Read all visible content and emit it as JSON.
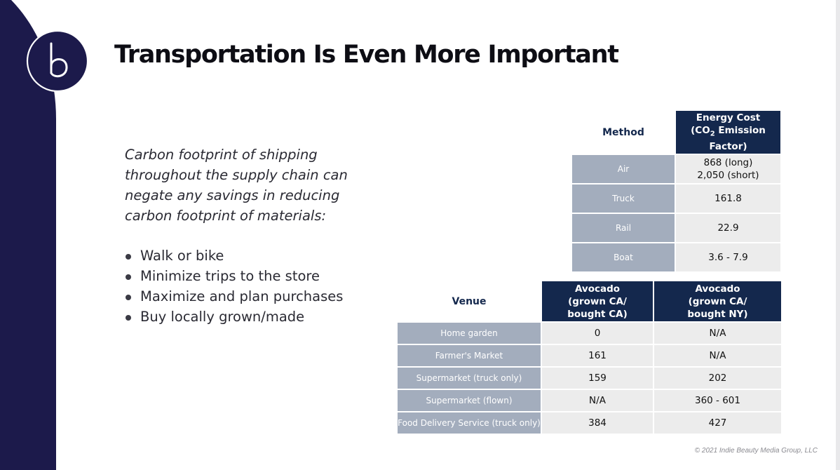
{
  "slide": {
    "title": "Transportation Is Even More Important",
    "intro": "Carbon footprint of shipping throughout the supply chain can negate any savings in reducing carbon footprint of materials:",
    "bullets": [
      "Walk or bike",
      "Minimize trips to the store",
      "Maximize and plan purchases",
      "Buy locally grown/made"
    ],
    "copyright": "© 2021 Indie Beauty Media Group, LLC"
  },
  "colors": {
    "navy": "#14284d",
    "panel": "#1c1a4b",
    "label_cell": "#a3adbd",
    "value_cell": "#ececec"
  },
  "icons": {
    "logo": "b-logo-icon",
    "bullet": "bullet-dot-icon"
  },
  "method_table": {
    "header_left": "Method",
    "header_right_line1": "Energy Cost",
    "header_right_line2_pre": "(CO",
    "header_right_line2_sub": "2",
    "header_right_line2_post": " Emission",
    "header_right_line3": "Factor)",
    "rows": [
      {
        "method": "Air",
        "value_line1": "868 (long)",
        "value_line2": "2,050 (short)"
      },
      {
        "method": "Truck",
        "value_line1": "161.8",
        "value_line2": ""
      },
      {
        "method": "Rail",
        "value_line1": "22.9",
        "value_line2": ""
      },
      {
        "method": "Boat",
        "value_line1": "3.6 - 7.9",
        "value_line2": ""
      }
    ]
  },
  "venue_table": {
    "header_left": "Venue",
    "col1_lines": [
      "Avocado",
      "(grown CA/",
      "bought CA)"
    ],
    "col2_lines": [
      "Avocado",
      "(grown CA/",
      "bought NY)"
    ],
    "rows": [
      {
        "venue": "Home garden",
        "ca": "0",
        "ny": "N/A"
      },
      {
        "venue": "Farmer's Market",
        "ca": "161",
        "ny": "N/A"
      },
      {
        "venue": "Supermarket (truck only)",
        "ca": "159",
        "ny": "202"
      },
      {
        "venue": "Supermarket (flown)",
        "ca": "N/A",
        "ny": "360 - 601"
      },
      {
        "venue": "Food Delivery Service (truck only)",
        "ca": "384",
        "ny": "427"
      }
    ]
  }
}
